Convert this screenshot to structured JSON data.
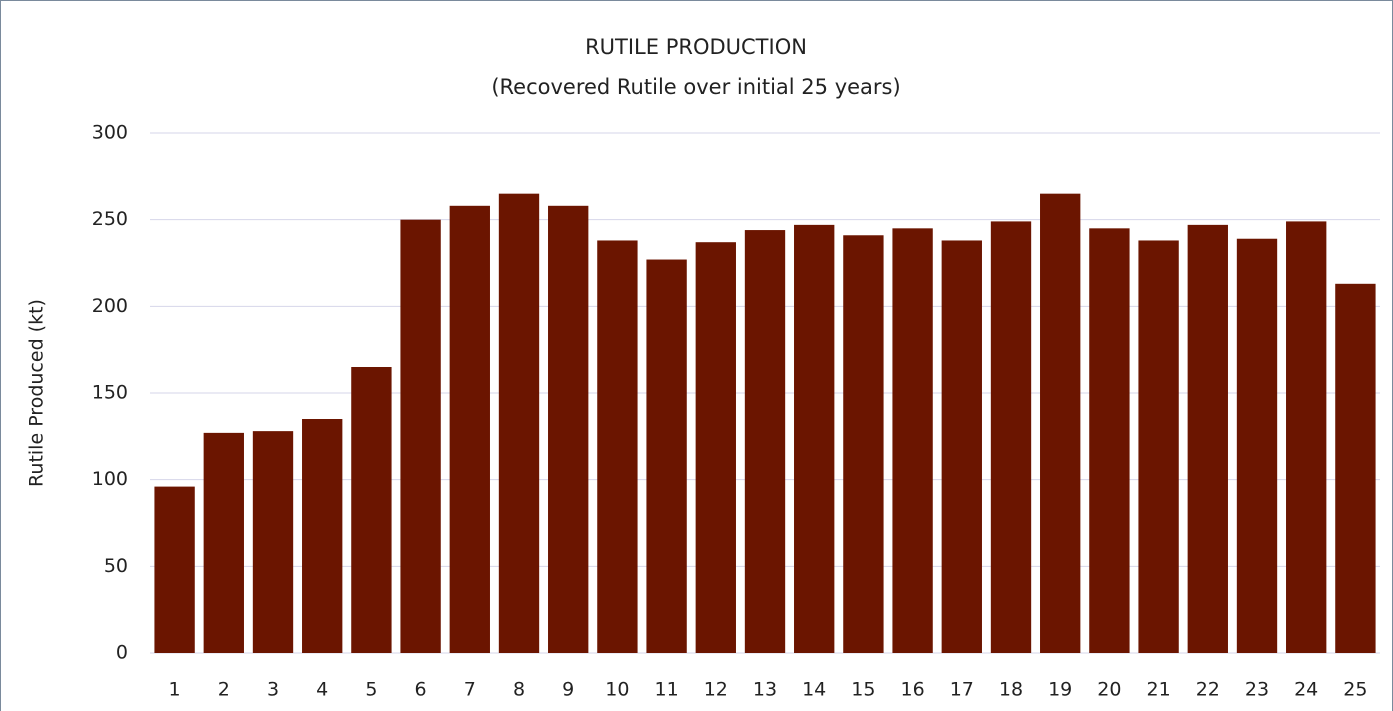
{
  "chart_data": {
    "type": "bar",
    "title": "RUTILE PRODUCTION",
    "subtitle": "(Recovered Rutile over initial 25 years)",
    "y_label": "Rutile Produced (kt)",
    "categories": [
      "1",
      "2",
      "3",
      "4",
      "5",
      "6",
      "7",
      "8",
      "9",
      "10",
      "11",
      "12",
      "13",
      "14",
      "15",
      "16",
      "17",
      "18",
      "19",
      "20",
      "21",
      "22",
      "23",
      "24",
      "25"
    ],
    "values": [
      96,
      127,
      128,
      135,
      165,
      250,
      258,
      265,
      258,
      238,
      227,
      237,
      244,
      247,
      241,
      245,
      238,
      249,
      265,
      245,
      238,
      247,
      239,
      249,
      213
    ],
    "color": "#6b1500",
    "ylim": [
      0,
      300
    ],
    "yticks": [
      0,
      50,
      100,
      150,
      200,
      250,
      300
    ],
    "grid": true
  }
}
